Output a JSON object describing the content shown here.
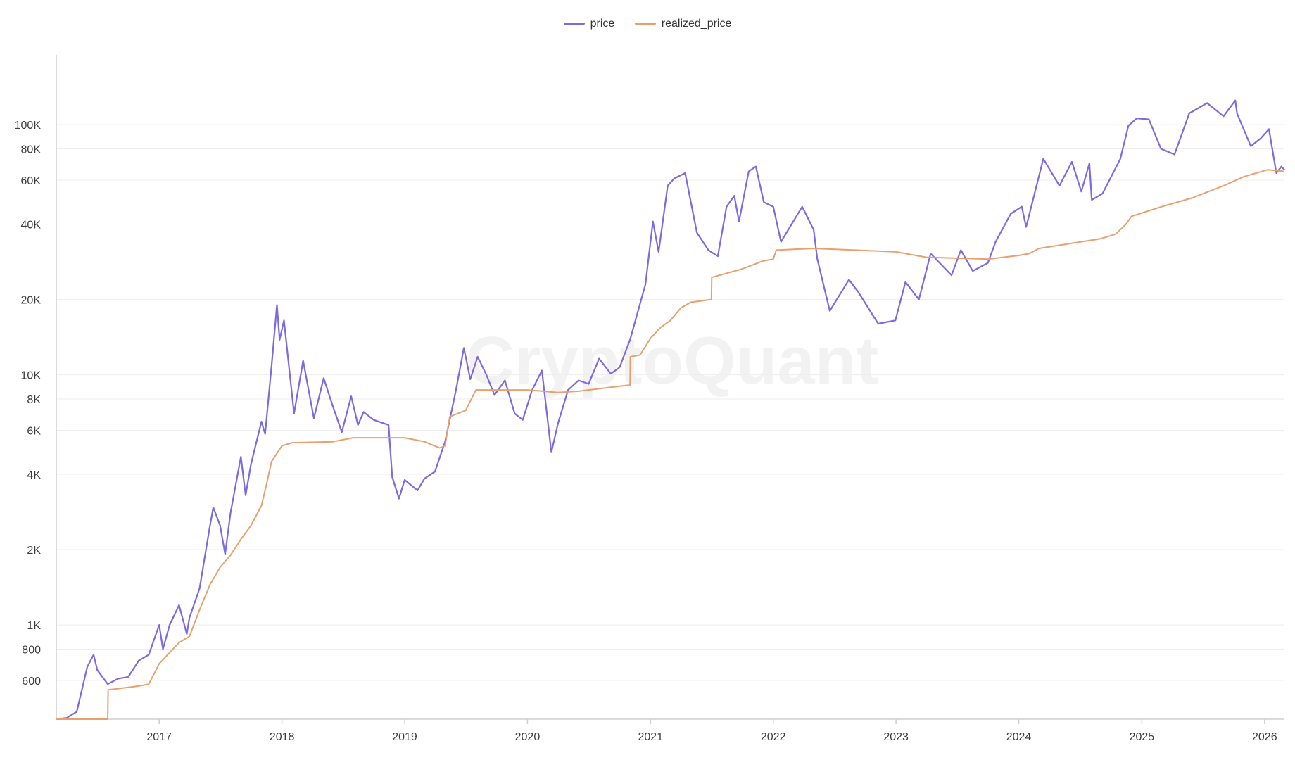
{
  "watermark": "CryptoQuant",
  "colors": {
    "price": "#7b6be0",
    "realized_price": "#e8a06e",
    "grid": "#eeeeee",
    "axis": "#cfcfcf"
  },
  "chart_data": {
    "type": "line",
    "x_axis": {
      "ticks": [
        "2017",
        "2018",
        "2019",
        "2020",
        "2021",
        "2022",
        "2023",
        "2024",
        "2025",
        "2026"
      ],
      "range": [
        "2016-03-01",
        "2026-03-01"
      ]
    },
    "y_axis": {
      "scale": "log",
      "range": [
        420,
        190000
      ],
      "ticks": [
        {
          "value": 600,
          "label": "600"
        },
        {
          "value": 800,
          "label": "800"
        },
        {
          "value": 1000,
          "label": "1K"
        },
        {
          "value": 2000,
          "label": "2K"
        },
        {
          "value": 4000,
          "label": "4K"
        },
        {
          "value": 6000,
          "label": "6K"
        },
        {
          "value": 8000,
          "label": "8K"
        },
        {
          "value": 10000,
          "label": "10K"
        },
        {
          "value": 20000,
          "label": "20K"
        },
        {
          "value": 40000,
          "label": "40K"
        },
        {
          "value": 60000,
          "label": "60K"
        },
        {
          "value": 80000,
          "label": "80K"
        },
        {
          "value": 100000,
          "label": "100K"
        }
      ]
    },
    "grid": true,
    "legend_position": "top-center",
    "series": [
      {
        "name": "price",
        "points": [
          [
            "2016-03-01",
            420
          ],
          [
            "2016-04-01",
            425
          ],
          [
            "2016-05-01",
            450
          ],
          [
            "2016-06-01",
            680
          ],
          [
            "2016-06-20",
            760
          ],
          [
            "2016-07-01",
            660
          ],
          [
            "2016-08-01",
            580
          ],
          [
            "2016-09-01",
            610
          ],
          [
            "2016-10-01",
            620
          ],
          [
            "2016-11-01",
            720
          ],
          [
            "2016-12-01",
            760
          ],
          [
            "2017-01-01",
            1000
          ],
          [
            "2017-01-12",
            800
          ],
          [
            "2017-02-01",
            1000
          ],
          [
            "2017-03-01",
            1200
          ],
          [
            "2017-03-24",
            920
          ],
          [
            "2017-04-01",
            1070
          ],
          [
            "2017-05-01",
            1400
          ],
          [
            "2017-06-01",
            2500
          ],
          [
            "2017-06-11",
            2950
          ],
          [
            "2017-07-01",
            2500
          ],
          [
            "2017-07-16",
            1920
          ],
          [
            "2017-08-01",
            2800
          ],
          [
            "2017-09-01",
            4700
          ],
          [
            "2017-09-15",
            3300
          ],
          [
            "2017-10-01",
            4400
          ],
          [
            "2017-11-01",
            6500
          ],
          [
            "2017-11-12",
            5800
          ],
          [
            "2017-12-01",
            10800
          ],
          [
            "2017-12-17",
            19000
          ],
          [
            "2017-12-25",
            13800
          ],
          [
            "2018-01-07",
            16500
          ],
          [
            "2018-02-06",
            7000
          ],
          [
            "2018-03-05",
            11400
          ],
          [
            "2018-04-06",
            6700
          ],
          [
            "2018-05-05",
            9700
          ],
          [
            "2018-06-01",
            7500
          ],
          [
            "2018-06-28",
            5900
          ],
          [
            "2018-07-26",
            8200
          ],
          [
            "2018-08-15",
            6300
          ],
          [
            "2018-09-01",
            7100
          ],
          [
            "2018-10-01",
            6600
          ],
          [
            "2018-11-14",
            6300
          ],
          [
            "2018-11-25",
            3900
          ],
          [
            "2018-12-15",
            3200
          ],
          [
            "2019-01-01",
            3800
          ],
          [
            "2019-02-08",
            3450
          ],
          [
            "2019-03-01",
            3850
          ],
          [
            "2019-04-01",
            4100
          ],
          [
            "2019-05-01",
            5400
          ],
          [
            "2019-06-01",
            8500
          ],
          [
            "2019-06-26",
            12800
          ],
          [
            "2019-07-15",
            9600
          ],
          [
            "2019-08-06",
            11800
          ],
          [
            "2019-09-01",
            10000
          ],
          [
            "2019-09-25",
            8300
          ],
          [
            "2019-10-26",
            9500
          ],
          [
            "2019-11-24",
            7000
          ],
          [
            "2019-12-18",
            6600
          ],
          [
            "2020-01-15",
            8700
          ],
          [
            "2020-02-13",
            10400
          ],
          [
            "2020-03-12",
            4900
          ],
          [
            "2020-04-01",
            6400
          ],
          [
            "2020-05-01",
            8700
          ],
          [
            "2020-06-01",
            9500
          ],
          [
            "2020-07-01",
            9200
          ],
          [
            "2020-08-01",
            11600
          ],
          [
            "2020-09-05",
            10100
          ],
          [
            "2020-10-01",
            10700
          ],
          [
            "2020-11-01",
            13800
          ],
          [
            "2020-12-17",
            23000
          ],
          [
            "2021-01-08",
            41000
          ],
          [
            "2021-01-25",
            31000
          ],
          [
            "2021-02-21",
            57000
          ],
          [
            "2021-03-13",
            61000
          ],
          [
            "2021-04-14",
            64000
          ],
          [
            "2021-05-19",
            37000
          ],
          [
            "2021-06-22",
            31500
          ],
          [
            "2021-07-20",
            29800
          ],
          [
            "2021-08-15",
            47000
          ],
          [
            "2021-09-07",
            52000
          ],
          [
            "2021-09-21",
            41000
          ],
          [
            "2021-10-20",
            65000
          ],
          [
            "2021-11-10",
            68000
          ],
          [
            "2021-12-04",
            49000
          ],
          [
            "2022-01-01",
            47000
          ],
          [
            "2022-01-24",
            34000
          ],
          [
            "2022-03-28",
            47000
          ],
          [
            "2022-05-01",
            38000
          ],
          [
            "2022-05-12",
            29000
          ],
          [
            "2022-06-18",
            18000
          ],
          [
            "2022-08-14",
            24000
          ],
          [
            "2022-09-10",
            21500
          ],
          [
            "2022-11-09",
            16000
          ],
          [
            "2022-12-30",
            16500
          ],
          [
            "2023-01-29",
            23500
          ],
          [
            "2023-03-10",
            20000
          ],
          [
            "2023-04-14",
            30500
          ],
          [
            "2023-06-15",
            25000
          ],
          [
            "2023-07-13",
            31500
          ],
          [
            "2023-08-17",
            26000
          ],
          [
            "2023-10-01",
            28000
          ],
          [
            "2023-10-24",
            34000
          ],
          [
            "2023-12-08",
            44000
          ],
          [
            "2024-01-10",
            47000
          ],
          [
            "2024-01-23",
            39000
          ],
          [
            "2024-03-14",
            73000
          ],
          [
            "2024-05-01",
            57000
          ],
          [
            "2024-06-07",
            71000
          ],
          [
            "2024-07-05",
            54000
          ],
          [
            "2024-07-29",
            70000
          ],
          [
            "2024-08-05",
            50000
          ],
          [
            "2024-09-06",
            53000
          ],
          [
            "2024-10-29",
            73000
          ],
          [
            "2024-11-22",
            99000
          ],
          [
            "2024-12-17",
            106000
          ],
          [
            "2025-01-22",
            105000
          ],
          [
            "2025-02-27",
            80000
          ],
          [
            "2025-04-08",
            76000
          ],
          [
            "2025-05-22",
            111000
          ],
          [
            "2025-07-14",
            122000
          ],
          [
            "2025-09-01",
            108000
          ],
          [
            "2025-10-06",
            125000
          ],
          [
            "2025-10-11",
            111000
          ],
          [
            "2025-11-21",
            82000
          ],
          [
            "2025-12-20",
            88000
          ],
          [
            "2026-01-14",
            96000
          ],
          [
            "2026-02-05",
            64000
          ],
          [
            "2026-02-20",
            68000
          ],
          [
            "2026-03-01",
            66000
          ]
        ]
      },
      {
        "name": "realized_price",
        "points": [
          [
            "2016-03-01",
            420
          ],
          [
            "2016-08-01",
            420
          ],
          [
            "2016-08-02",
            550
          ],
          [
            "2016-11-01",
            570
          ],
          [
            "2016-12-01",
            580
          ],
          [
            "2017-01-01",
            700
          ],
          [
            "2017-03-01",
            850
          ],
          [
            "2017-04-01",
            900
          ],
          [
            "2017-05-01",
            1150
          ],
          [
            "2017-06-01",
            1450
          ],
          [
            "2017-07-01",
            1700
          ],
          [
            "2017-08-01",
            1900
          ],
          [
            "2017-09-01",
            2200
          ],
          [
            "2017-10-01",
            2500
          ],
          [
            "2017-11-01",
            3000
          ],
          [
            "2017-11-15",
            3600
          ],
          [
            "2017-12-01",
            4500
          ],
          [
            "2018-01-01",
            5200
          ],
          [
            "2018-02-01",
            5350
          ],
          [
            "2018-06-01",
            5400
          ],
          [
            "2018-08-01",
            5600
          ],
          [
            "2019-01-01",
            5600
          ],
          [
            "2019-03-01",
            5400
          ],
          [
            "2019-04-15",
            5100
          ],
          [
            "2019-05-01",
            5200
          ],
          [
            "2019-05-15",
            6800
          ],
          [
            "2019-07-01",
            7200
          ],
          [
            "2019-08-01",
            8700
          ],
          [
            "2020-01-01",
            8700
          ],
          [
            "2020-04-01",
            8500
          ],
          [
            "2020-06-01",
            8600
          ],
          [
            "2020-10-01",
            9000
          ],
          [
            "2020-11-01",
            9100
          ],
          [
            "2020-11-02",
            11800
          ],
          [
            "2020-12-01",
            12000
          ],
          [
            "2021-01-01",
            14000
          ],
          [
            "2021-02-01",
            15500
          ],
          [
            "2021-03-01",
            16500
          ],
          [
            "2021-04-01",
            18500
          ],
          [
            "2021-05-01",
            19500
          ],
          [
            "2021-07-01",
            20000
          ],
          [
            "2021-07-02",
            24500
          ],
          [
            "2021-10-01",
            26500
          ],
          [
            "2021-12-01",
            28500
          ],
          [
            "2022-01-01",
            29000
          ],
          [
            "2022-01-10",
            31500
          ],
          [
            "2022-05-01",
            32000
          ],
          [
            "2022-09-01",
            31500
          ],
          [
            "2023-01-01",
            31000
          ],
          [
            "2023-04-01",
            29500
          ],
          [
            "2023-10-01",
            29000
          ],
          [
            "2024-01-01",
            30000
          ],
          [
            "2024-02-01",
            30500
          ],
          [
            "2024-03-01",
            32000
          ],
          [
            "2024-09-01",
            35000
          ],
          [
            "2024-10-15",
            36500
          ],
          [
            "2024-11-15",
            40000
          ],
          [
            "2024-12-01",
            43000
          ],
          [
            "2025-03-01",
            47000
          ],
          [
            "2025-06-01",
            51000
          ],
          [
            "2025-09-01",
            57000
          ],
          [
            "2025-11-01",
            62000
          ],
          [
            "2026-01-10",
            66000
          ],
          [
            "2026-03-01",
            65000
          ]
        ]
      }
    ]
  }
}
